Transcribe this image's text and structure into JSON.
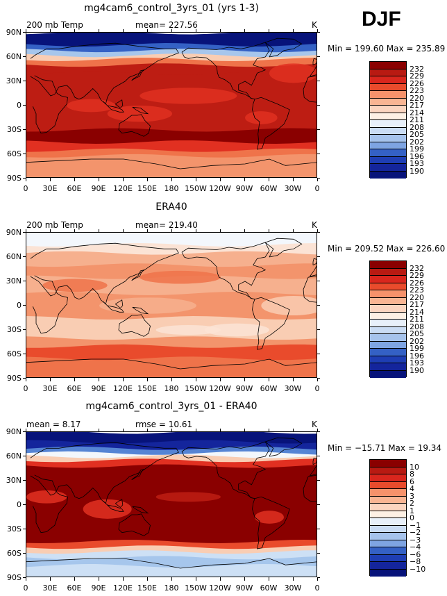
{
  "season": "DJF",
  "colors": {
    "temp": [
      "#fbe3d5",
      "#f9cdb3",
      "#f6b08e",
      "#f3946c",
      "#ef734a",
      "#e94b2c",
      "#e13021",
      "#bd1d13",
      "#8a0000"
    ],
    "cold": [
      "#f3f7fc",
      "#cde0f5",
      "#a6c6ec",
      "#7da8e1",
      "#5584d4",
      "#3461c5",
      "#1e3eb4",
      "#14259c",
      "#07137a"
    ]
  },
  "panels": [
    {
      "title": "mg4cam6_control_3yrs_01 (yrs 1-3)",
      "left_label": "200 mb Temp",
      "center_label": "mean= 227.56",
      "units": "K",
      "minmax": "Min = 199.60 Max = 235.89",
      "legend": [
        "232",
        "229",
        "226",
        "223",
        "220",
        "217",
        "214",
        "211",
        "208",
        "205",
        "202",
        "199",
        "196",
        "193",
        "190"
      ],
      "legend_colors": [
        "#8a0000",
        "#b81a12",
        "#d9261d",
        "#e94b2c",
        "#f2714a",
        "#f6926b",
        "#f9b593",
        "#fbd5c0",
        "#fdf0e4",
        "#e8f0fa",
        "#cadcf4",
        "#a6c3ec",
        "#7ea4e2",
        "#5580d4",
        "#3461c5",
        "#1e3eb4",
        "#14259c",
        "#07137a"
      ],
      "chart_data": {
        "type": "contour-map",
        "variable": "200 mb Temp",
        "units": "K",
        "mean": 227.56,
        "min": 199.6,
        "max": 235.89,
        "levels": [
          190,
          193,
          196,
          199,
          202,
          205,
          208,
          211,
          214,
          217,
          220,
          223,
          226,
          229,
          232
        ]
      }
    },
    {
      "title": "ERA40",
      "left_label": "200 mb Temp",
      "center_label": "mean= 219.40",
      "units": "K",
      "minmax": "Min = 209.52 Max = 226.60",
      "legend": [
        "232",
        "229",
        "226",
        "223",
        "220",
        "217",
        "214",
        "211",
        "208",
        "205",
        "202",
        "199",
        "196",
        "193",
        "190"
      ],
      "legend_colors": [
        "#8a0000",
        "#b81a12",
        "#d9261d",
        "#e94b2c",
        "#f2714a",
        "#f6926b",
        "#f9b593",
        "#fbd5c0",
        "#fdf0e4",
        "#e8f0fa",
        "#cadcf4",
        "#a6c3ec",
        "#7ea4e2",
        "#5580d4",
        "#3461c5",
        "#1e3eb4",
        "#14259c",
        "#07137a"
      ],
      "chart_data": {
        "type": "contour-map",
        "variable": "200 mb Temp",
        "units": "K",
        "mean": 219.4,
        "min": 209.52,
        "max": 226.6,
        "levels": [
          190,
          193,
          196,
          199,
          202,
          205,
          208,
          211,
          214,
          217,
          220,
          223,
          226,
          229,
          232
        ]
      }
    },
    {
      "title": "mg4cam6_control_3yrs_01 - ERA40",
      "left_label": "mean =    8.17",
      "center_label": "rmse =   10.61",
      "units": "K",
      "minmax": "Min = −15.71 Max =   19.34",
      "legend": [
        "10",
        "8",
        "6",
        "4",
        "3",
        "2",
        "1",
        "0",
        "−1",
        "−2",
        "−3",
        "−4",
        "−6",
        "−8",
        "−10"
      ],
      "legend_colors": [
        "#8a0000",
        "#b81a12",
        "#d9261d",
        "#e94b2c",
        "#f2714a",
        "#f6926b",
        "#f9b593",
        "#fbd5c0",
        "#fdf0e4",
        "#e8f0fa",
        "#cadcf4",
        "#a6c3ec",
        "#7ea4e2",
        "#5580d4",
        "#3461c5",
        "#1e3eb4",
        "#14259c",
        "#07137a"
      ],
      "chart_data": {
        "type": "contour-map",
        "variable": "200 mb Temp difference",
        "units": "K",
        "mean": 8.17,
        "rmse": 10.61,
        "min": -15.71,
        "max": 19.34,
        "levels": [
          -10,
          -8,
          -6,
          -4,
          -3,
          -2,
          -1,
          0,
          1,
          2,
          3,
          4,
          6,
          8,
          10
        ]
      }
    }
  ],
  "lat_ticks": [
    "90N",
    "60N",
    "30N",
    "0",
    "30S",
    "60S",
    "90S"
  ],
  "lon_ticks": [
    "0",
    "30E",
    "60E",
    "90E",
    "120E",
    "150E",
    "180",
    "150W",
    "120W",
    "90W",
    "60W",
    "30W",
    "0"
  ]
}
